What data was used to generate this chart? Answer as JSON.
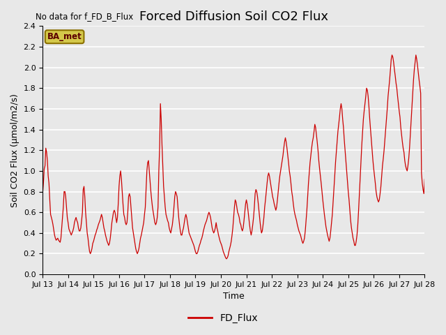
{
  "title": "Forced Diffusion Soil CO2 Flux",
  "subtitle": "No data for f_FD_B_Flux",
  "xlabel": "Time",
  "ylabel": "Soil CO2 Flux (μmol/m2/s)",
  "ylim": [
    0.0,
    2.4
  ],
  "yticks": [
    0.0,
    0.2,
    0.4,
    0.6,
    0.8,
    1.0,
    1.2,
    1.4,
    1.6,
    1.8,
    2.0,
    2.2,
    2.4
  ],
  "xtick_labels": [
    "Jul 13",
    "Jul 14",
    "Jul 15",
    "Jul 16",
    "Jul 17",
    "Jul 18",
    "Jul 19",
    "Jul 20",
    "Jul 21",
    "Jul 22",
    "Jul 23",
    "Jul 24",
    "Jul 25",
    "Jul 26",
    "Jul 27",
    "Jul 28"
  ],
  "legend_label": "FD_Flux",
  "legend_box_label": "BA_met",
  "line_color": "#cc0000",
  "background_color": "#e8e8e8",
  "plot_bg_color": "#e8e8e8",
  "grid_color": "#ffffff",
  "title_fontsize": 13,
  "label_fontsize": 9,
  "tick_fontsize": 8,
  "xlim": [
    0,
    15
  ],
  "y": [
    0.78,
    0.88,
    1.02,
    1.05,
    1.22,
    1.18,
    1.1,
    0.95,
    0.88,
    0.72,
    0.58,
    0.55,
    0.52,
    0.48,
    0.43,
    0.38,
    0.35,
    0.33,
    0.34,
    0.35,
    0.33,
    0.32,
    0.31,
    0.35,
    0.45,
    0.55,
    0.65,
    0.8,
    0.8,
    0.75,
    0.65,
    0.55,
    0.5,
    0.44,
    0.42,
    0.4,
    0.38,
    0.4,
    0.42,
    0.45,
    0.5,
    0.53,
    0.55,
    0.52,
    0.5,
    0.45,
    0.42,
    0.42,
    0.45,
    0.52,
    0.6,
    0.82,
    0.85,
    0.75,
    0.6,
    0.5,
    0.4,
    0.35,
    0.28,
    0.22,
    0.2,
    0.22,
    0.25,
    0.3,
    0.32,
    0.35,
    0.38,
    0.4,
    0.43,
    0.45,
    0.48,
    0.5,
    0.52,
    0.55,
    0.58,
    0.55,
    0.5,
    0.45,
    0.42,
    0.38,
    0.35,
    0.32,
    0.3,
    0.28,
    0.3,
    0.35,
    0.42,
    0.5,
    0.55,
    0.6,
    0.62,
    0.6,
    0.55,
    0.5,
    0.55,
    0.68,
    0.85,
    0.95,
    1.0,
    0.92,
    0.8,
    0.68,
    0.58,
    0.55,
    0.5,
    0.48,
    0.5,
    0.6,
    0.75,
    0.78,
    0.75,
    0.65,
    0.55,
    0.45,
    0.4,
    0.35,
    0.3,
    0.25,
    0.22,
    0.2,
    0.22,
    0.25,
    0.3,
    0.35,
    0.38,
    0.42,
    0.46,
    0.5,
    0.58,
    0.65,
    0.82,
    1.0,
    1.08,
    1.1,
    1.0,
    0.9,
    0.8,
    0.72,
    0.65,
    0.6,
    0.55,
    0.5,
    0.48,
    0.5,
    0.55,
    0.65,
    1.0,
    1.22,
    1.65,
    1.5,
    1.25,
    1.05,
    0.85,
    0.75,
    0.65,
    0.58,
    0.55,
    0.52,
    0.5,
    0.45,
    0.42,
    0.4,
    0.44,
    0.48,
    0.55,
    0.65,
    0.75,
    0.8,
    0.78,
    0.75,
    0.65,
    0.55,
    0.48,
    0.42,
    0.38,
    0.38,
    0.42,
    0.45,
    0.5,
    0.55,
    0.58,
    0.55,
    0.5,
    0.45,
    0.4,
    0.38,
    0.36,
    0.34,
    0.32,
    0.3,
    0.28,
    0.25,
    0.22,
    0.2,
    0.2,
    0.22,
    0.25,
    0.28,
    0.3,
    0.33,
    0.35,
    0.38,
    0.42,
    0.45,
    0.48,
    0.5,
    0.52,
    0.55,
    0.58,
    0.6,
    0.58,
    0.55,
    0.5,
    0.45,
    0.42,
    0.4,
    0.42,
    0.45,
    0.5,
    0.45,
    0.42,
    0.38,
    0.35,
    0.32,
    0.3,
    0.28,
    0.25,
    0.22,
    0.2,
    0.18,
    0.16,
    0.15,
    0.16,
    0.18,
    0.22,
    0.25,
    0.28,
    0.32,
    0.38,
    0.45,
    0.55,
    0.65,
    0.72,
    0.7,
    0.65,
    0.6,
    0.58,
    0.55,
    0.5,
    0.48,
    0.44,
    0.42,
    0.45,
    0.52,
    0.6,
    0.68,
    0.72,
    0.68,
    0.62,
    0.55,
    0.48,
    0.42,
    0.38,
    0.42,
    0.48,
    0.55,
    0.65,
    0.78,
    0.82,
    0.8,
    0.75,
    0.68,
    0.6,
    0.52,
    0.45,
    0.4,
    0.42,
    0.48,
    0.55,
    0.65,
    0.72,
    0.8,
    0.88,
    0.95,
    0.98,
    0.95,
    0.9,
    0.85,
    0.8,
    0.75,
    0.72,
    0.68,
    0.65,
    0.62,
    0.65,
    0.72,
    0.8,
    0.88,
    0.95,
    1.0,
    1.05,
    1.1,
    1.15,
    1.22,
    1.28,
    1.32,
    1.28,
    1.22,
    1.15,
    1.08,
    1.0,
    0.95,
    0.88,
    0.8,
    0.75,
    0.68,
    0.62,
    0.58,
    0.55,
    0.52,
    0.48,
    0.45,
    0.42,
    0.4,
    0.38,
    0.35,
    0.32,
    0.3,
    0.32,
    0.35,
    0.42,
    0.52,
    0.62,
    0.75,
    0.88,
    0.98,
    1.08,
    1.15,
    1.22,
    1.28,
    1.32,
    1.38,
    1.45,
    1.42,
    1.35,
    1.28,
    1.2,
    1.1,
    1.02,
    0.95,
    0.88,
    0.8,
    0.72,
    0.65,
    0.58,
    0.52,
    0.46,
    0.42,
    0.38,
    0.35,
    0.32,
    0.35,
    0.42,
    0.5,
    0.58,
    0.7,
    0.82,
    0.95,
    1.08,
    1.18,
    1.28,
    1.38,
    1.45,
    1.52,
    1.6,
    1.65,
    1.6,
    1.5,
    1.42,
    1.3,
    1.2,
    1.1,
    1.0,
    0.9,
    0.8,
    0.72,
    0.62,
    0.52,
    0.45,
    0.4,
    0.35,
    0.32,
    0.28,
    0.28,
    0.32,
    0.38,
    0.48,
    0.62,
    0.78,
    0.95,
    1.1,
    1.25,
    1.38,
    1.5,
    1.58,
    1.65,
    1.72,
    1.8,
    1.78,
    1.72,
    1.62,
    1.5,
    1.4,
    1.3,
    1.2,
    1.1,
    1.02,
    0.95,
    0.88,
    0.8,
    0.75,
    0.72,
    0.7,
    0.72,
    0.78,
    0.85,
    0.95,
    1.05,
    1.12,
    1.2,
    1.3,
    1.4,
    1.5,
    1.6,
    1.72,
    1.8,
    1.88,
    1.98,
    2.08,
    2.12,
    2.1,
    2.05,
    1.98,
    1.92,
    1.85,
    1.8,
    1.72,
    1.65,
    1.58,
    1.52,
    1.42,
    1.35,
    1.28,
    1.22,
    1.18,
    1.1,
    1.05,
    1.02,
    1.0,
    1.05,
    1.12,
    1.22,
    1.35,
    1.48,
    1.62,
    1.75,
    1.88,
    1.98,
    2.05,
    2.12,
    2.08,
    2.02,
    1.95,
    1.88,
    1.82,
    1.75,
    0.98,
    0.88,
    0.82,
    0.78,
    0.92
  ]
}
